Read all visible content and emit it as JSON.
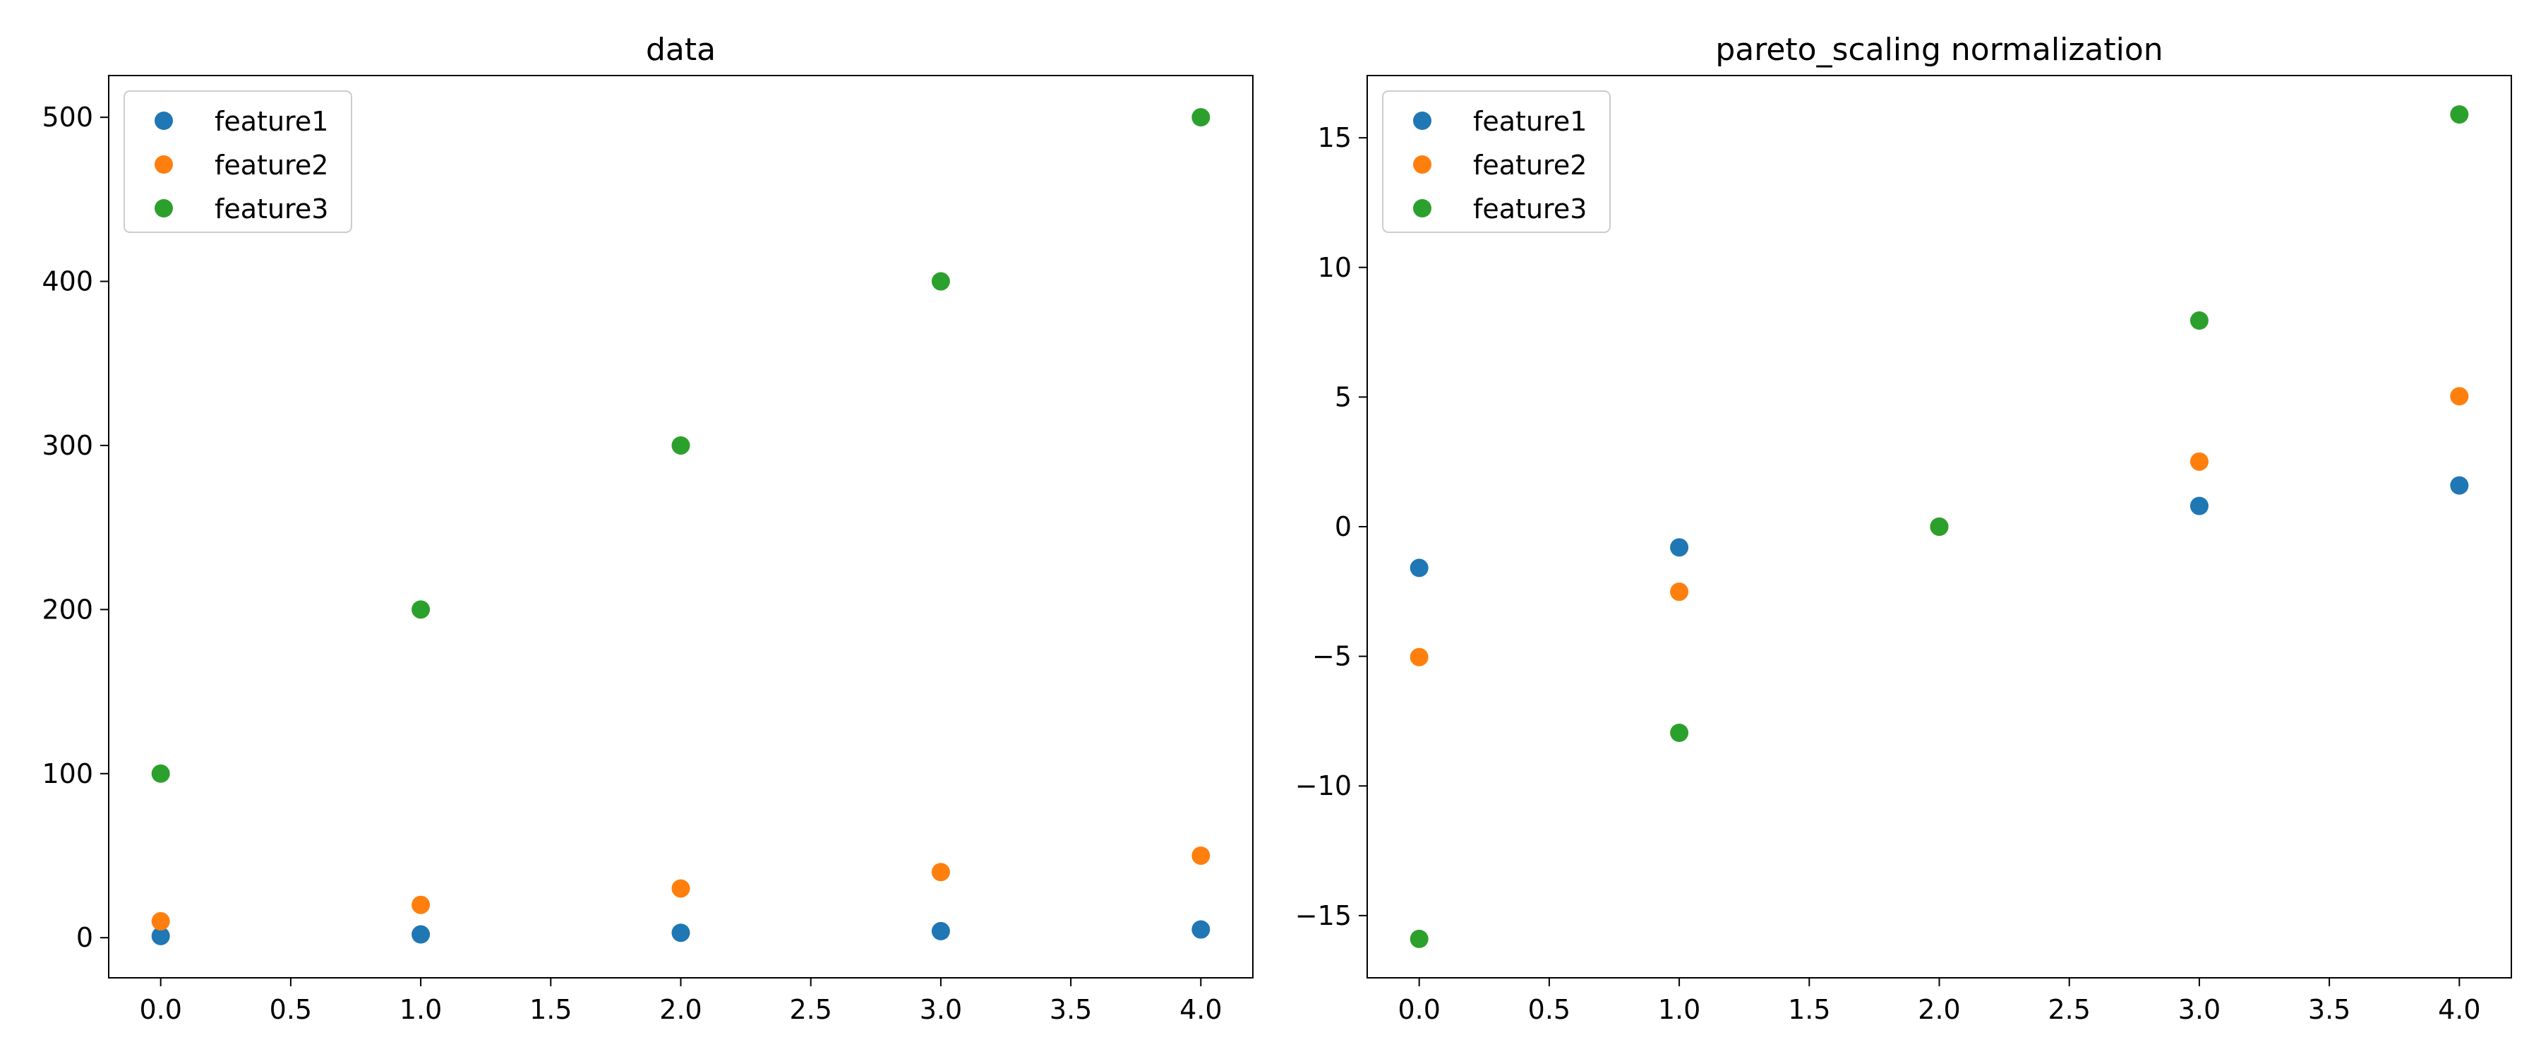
{
  "chart_data": [
    {
      "type": "scatter",
      "title": "data",
      "xlabel": "",
      "ylabel": "",
      "xlim": [
        -0.2,
        4.2
      ],
      "ylim": [
        -24.45,
        525.45
      ],
      "grid": false,
      "legend": "upper-left",
      "xticks": [
        0.0,
        0.5,
        1.0,
        1.5,
        2.0,
        2.5,
        3.0,
        3.5,
        4.0
      ],
      "xtick_labels": [
        "0.0",
        "0.5",
        "1.0",
        "1.5",
        "2.0",
        "2.5",
        "3.0",
        "3.5",
        "4.0"
      ],
      "yticks": [
        0,
        100,
        200,
        300,
        400,
        500
      ],
      "ytick_labels": [
        "0",
        "100",
        "200",
        "300",
        "400",
        "500"
      ],
      "series": [
        {
          "name": "feature1",
          "color": "#1f77b4",
          "x": [
            0,
            1,
            2,
            3,
            4
          ],
          "y": [
            1,
            2,
            3,
            4,
            5
          ]
        },
        {
          "name": "feature2",
          "color": "#ff7f0e",
          "x": [
            0,
            1,
            2,
            3,
            4
          ],
          "y": [
            10,
            20,
            30,
            40,
            50
          ]
        },
        {
          "name": "feature3",
          "color": "#2ca02c",
          "x": [
            0,
            1,
            2,
            3,
            4
          ],
          "y": [
            100,
            200,
            300,
            400,
            500
          ]
        }
      ]
    },
    {
      "type": "scatter",
      "title": "pareto_scaling normalization",
      "xlabel": "",
      "ylabel": "",
      "xlim": [
        -0.2,
        4.2
      ],
      "ylim": [
        -17.4,
        17.4
      ],
      "grid": false,
      "legend": "upper-left",
      "xticks": [
        0.0,
        0.5,
        1.0,
        1.5,
        2.0,
        2.5,
        3.0,
        3.5,
        4.0
      ],
      "xtick_labels": [
        "0.0",
        "0.5",
        "1.0",
        "1.5",
        "2.0",
        "2.5",
        "3.0",
        "3.5",
        "4.0"
      ],
      "yticks": [
        -15,
        -10,
        -5,
        0,
        5,
        10,
        15
      ],
      "ytick_labels": [
        "−15",
        "−10",
        "−5",
        "0",
        "5",
        "10",
        "15"
      ],
      "series": [
        {
          "name": "feature1",
          "color": "#1f77b4",
          "x": [
            0,
            1,
            2,
            3,
            4
          ],
          "y": [
            -1.59,
            -0.8,
            0.0,
            0.8,
            1.59
          ]
        },
        {
          "name": "feature2",
          "color": "#ff7f0e",
          "x": [
            0,
            1,
            2,
            3,
            4
          ],
          "y": [
            -5.03,
            -2.51,
            0.0,
            2.51,
            5.03
          ]
        },
        {
          "name": "feature3",
          "color": "#2ca02c",
          "x": [
            0,
            1,
            2,
            3,
            4
          ],
          "y": [
            -15.9,
            -7.95,
            0.0,
            7.95,
            15.9
          ]
        }
      ]
    }
  ]
}
